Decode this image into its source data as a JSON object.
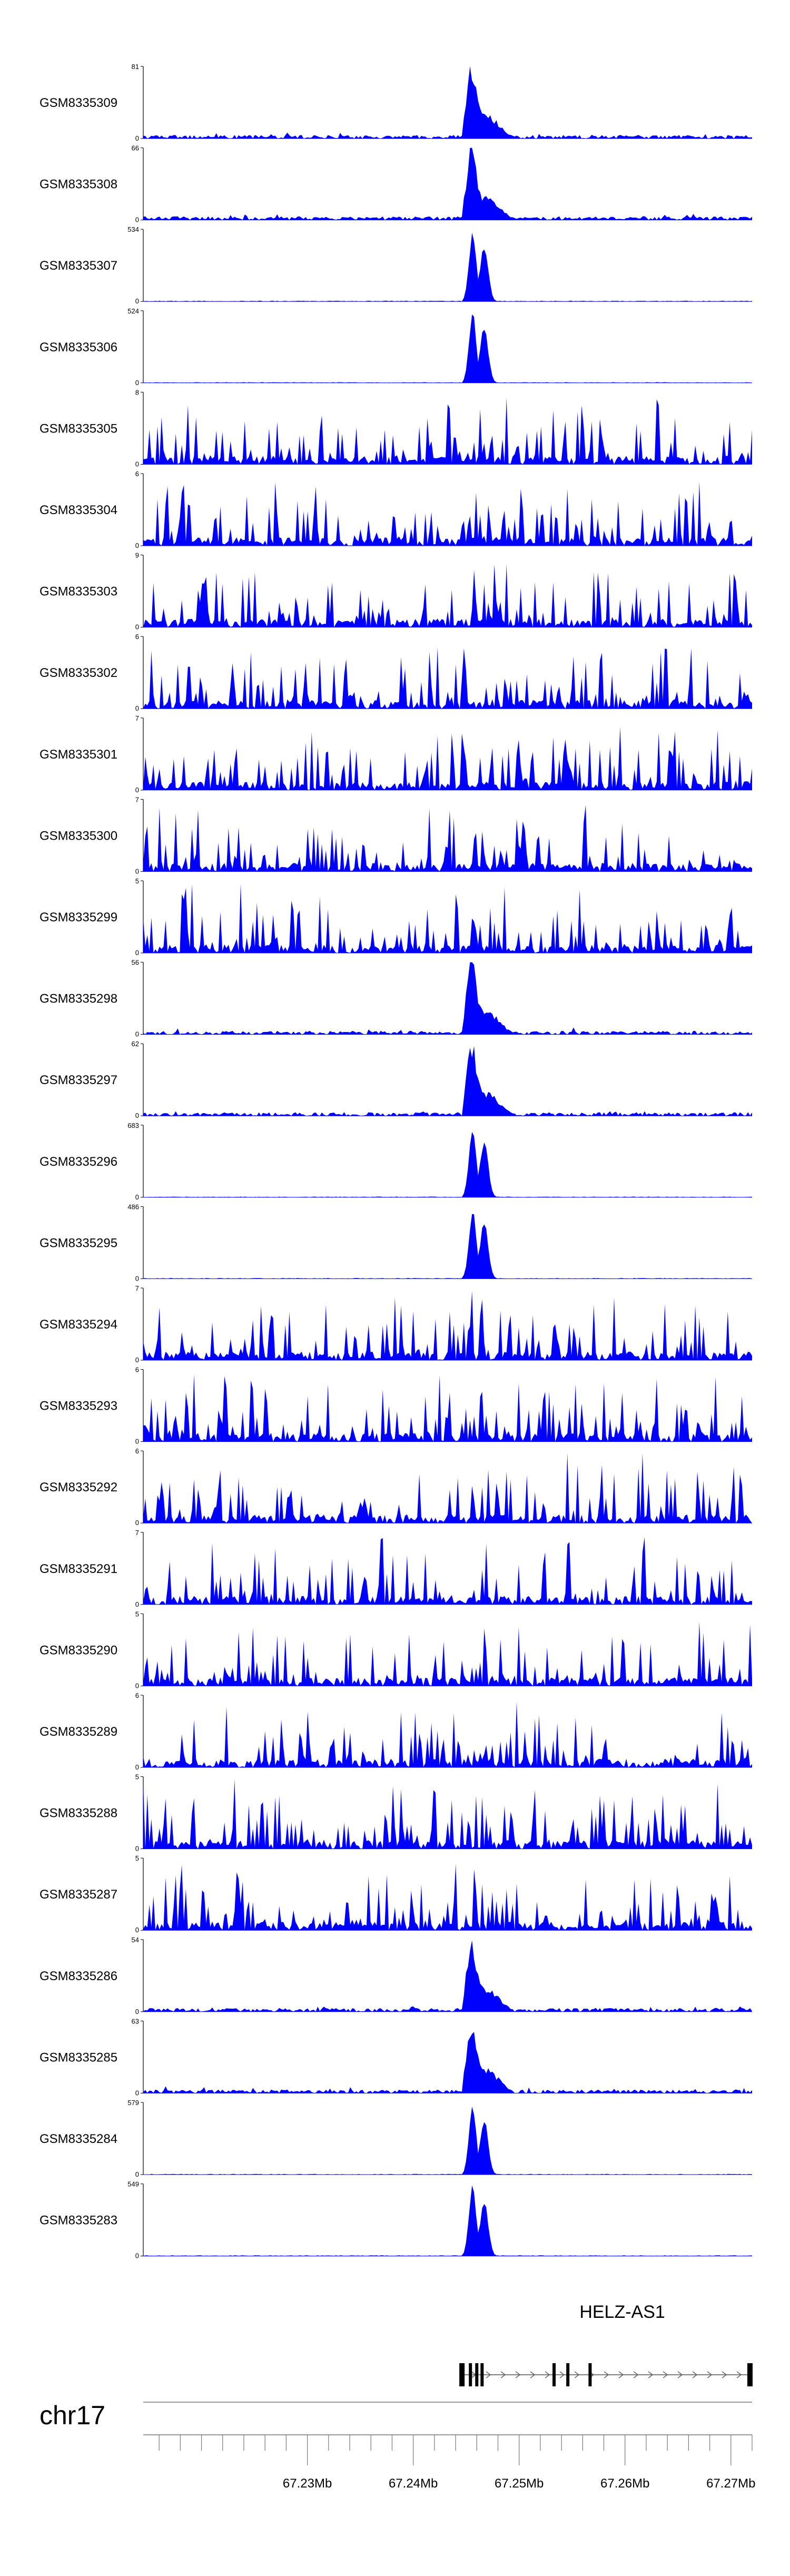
{
  "chart_data": {
    "type": "area",
    "title": "",
    "chromosome": "chr17",
    "xlim": [
      67.2145,
      67.272
    ],
    "x_unit": "Mb",
    "x_ticks": [
      67.23,
      67.24,
      67.25,
      67.26,
      67.27
    ],
    "x_tick_labels": [
      "67.23Mb",
      "67.24Mb",
      "67.25Mb",
      "67.26Mb",
      "67.27Mb"
    ],
    "minor_tick_step": 0.002,
    "y_min_label": "0",
    "peak_region_mb": [
      67.2448,
      67.2475
    ],
    "color": "#0000ff",
    "series": [
      {
        "name": "GSM8335309",
        "ymax": 81,
        "ymax_label": "81",
        "profile": "peak-noisy"
      },
      {
        "name": "GSM8335308",
        "ymax": 66,
        "ymax_label": "66",
        "profile": "peak-noisy"
      },
      {
        "name": "GSM8335307",
        "ymax": 534,
        "ymax_label": "534",
        "profile": "peak-clean"
      },
      {
        "name": "GSM8335306",
        "ymax": 524,
        "ymax_label": "524",
        "profile": "peak-clean"
      },
      {
        "name": "GSM8335305",
        "ymax": 8,
        "ymax_label": "8",
        "profile": "spiky"
      },
      {
        "name": "GSM8335304",
        "ymax": 6,
        "ymax_label": "6",
        "profile": "spiky"
      },
      {
        "name": "GSM8335303",
        "ymax": 9,
        "ymax_label": "9",
        "profile": "spiky"
      },
      {
        "name": "GSM8335302",
        "ymax": 6,
        "ymax_label": "6",
        "profile": "spiky"
      },
      {
        "name": "GSM8335301",
        "ymax": 7,
        "ymax_label": "7",
        "profile": "spiky"
      },
      {
        "name": "GSM8335300",
        "ymax": 7,
        "ymax_label": "7",
        "profile": "spiky"
      },
      {
        "name": "GSM8335299",
        "ymax": 5,
        "ymax_label": "5",
        "profile": "spiky"
      },
      {
        "name": "GSM8335298",
        "ymax": 56,
        "ymax_label": "56",
        "profile": "peak-noisy"
      },
      {
        "name": "GSM8335297",
        "ymax": 62,
        "ymax_label": "62",
        "profile": "peak-noisy"
      },
      {
        "name": "GSM8335296",
        "ymax": 683,
        "ymax_label": "683",
        "profile": "peak-clean"
      },
      {
        "name": "GSM8335295",
        "ymax": 486,
        "ymax_label": "486",
        "profile": "peak-clean"
      },
      {
        "name": "GSM8335294",
        "ymax": 7,
        "ymax_label": "7",
        "profile": "spiky"
      },
      {
        "name": "GSM8335293",
        "ymax": 6,
        "ymax_label": "6",
        "profile": "spiky"
      },
      {
        "name": "GSM8335292",
        "ymax": 6,
        "ymax_label": "6",
        "profile": "spiky"
      },
      {
        "name": "GSM8335291",
        "ymax": 7,
        "ymax_label": "7",
        "profile": "spiky"
      },
      {
        "name": "GSM8335290",
        "ymax": 5,
        "ymax_label": "5",
        "profile": "spiky"
      },
      {
        "name": "GSM8335289",
        "ymax": 6,
        "ymax_label": "6",
        "profile": "spiky"
      },
      {
        "name": "GSM8335288",
        "ymax": 5,
        "ymax_label": "5",
        "profile": "spiky"
      },
      {
        "name": "GSM8335287",
        "ymax": 5,
        "ymax_label": "5",
        "profile": "spiky"
      },
      {
        "name": "GSM8335286",
        "ymax": 54,
        "ymax_label": "54",
        "profile": "peak-noisy"
      },
      {
        "name": "GSM8335285",
        "ymax": 63,
        "ymax_label": "63",
        "profile": "peak-noisy"
      },
      {
        "name": "GSM8335284",
        "ymax": 579,
        "ymax_label": "579",
        "profile": "peak-clean"
      },
      {
        "name": "GSM8335283",
        "ymax": 549,
        "ymax_label": "549",
        "profile": "peak-clean"
      }
    ],
    "gene": {
      "name": "HELZ-AS1",
      "start_mb": 67.2445,
      "end_mb": 67.272,
      "strand": "+",
      "exons_mb": [
        67.2446,
        67.2454,
        67.246,
        67.2465,
        67.2533,
        67.2546,
        67.2567,
        67.2718
      ]
    }
  }
}
